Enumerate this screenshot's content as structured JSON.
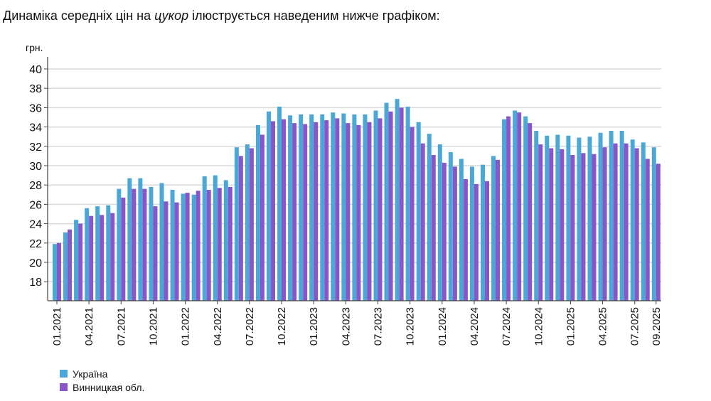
{
  "heading": {
    "before": "Динаміка середніх цін на ",
    "emphasis": "цукор",
    "after": " ілюструється наведеним нижче графіком:"
  },
  "chart_data": {
    "type": "bar",
    "title": "",
    "ylabel": "грн.",
    "xlabel": "",
    "ylim": [
      16,
      41
    ],
    "yticks": [
      18,
      20,
      22,
      24,
      26,
      28,
      30,
      32,
      34,
      36,
      38,
      40
    ],
    "grid": true,
    "legend_position": "bottom-left",
    "xtick_labels": [
      "01.2021",
      "04.2021",
      "07.2021",
      "10.2021",
      "01.2022",
      "04.2022",
      "07.2022",
      "10.2022",
      "01.2023",
      "04.2023",
      "07.2023",
      "10.2023",
      "01.2024",
      "04.2024",
      "07.2024",
      "10.2024",
      "01.2025",
      "04.2025",
      "07.2025",
      "09.2025"
    ],
    "categories": [
      "01.2021",
      "02.2021",
      "03.2021",
      "04.2021",
      "05.2021",
      "06.2021",
      "07.2021",
      "08.2021",
      "09.2021",
      "10.2021",
      "11.2021",
      "12.2021",
      "01.2022",
      "02.2022",
      "03.2022",
      "04.2022",
      "05.2022",
      "06.2022",
      "07.2022",
      "08.2022",
      "09.2022",
      "10.2022",
      "11.2022",
      "12.2022",
      "01.2023",
      "02.2023",
      "03.2023",
      "04.2023",
      "05.2023",
      "06.2023",
      "07.2023",
      "08.2023",
      "09.2023",
      "10.2023",
      "11.2023",
      "12.2023",
      "01.2024",
      "02.2024",
      "03.2024",
      "04.2024",
      "05.2024",
      "06.2024",
      "07.2024",
      "08.2024",
      "09.2024",
      "10.2024",
      "11.2024",
      "12.2024",
      "01.2025",
      "02.2025",
      "03.2025",
      "04.2025",
      "05.2025",
      "06.2025",
      "07.2025",
      "08.2025",
      "09.2025"
    ],
    "series": [
      {
        "name": "Україна",
        "color": "#4aa8d8",
        "values": [
          21.9,
          23.1,
          24.4,
          25.6,
          25.8,
          25.9,
          27.6,
          28.7,
          28.7,
          27.8,
          28.2,
          27.5,
          27.1,
          27.0,
          28.9,
          29.0,
          28.5,
          31.9,
          32.2,
          34.2,
          35.6,
          36.1,
          35.2,
          35.3,
          35.3,
          35.3,
          35.5,
          35.4,
          35.3,
          35.3,
          35.7,
          36.5,
          36.9,
          36.1,
          34.5,
          33.3,
          32.2,
          31.4,
          30.7,
          29.9,
          30.1,
          31.0,
          34.8,
          35.7,
          35.1,
          33.6,
          33.1,
          33.2,
          33.1,
          32.9,
          33.0,
          33.4,
          33.6,
          33.6,
          32.7,
          32.4,
          31.9
        ]
      },
      {
        "name": "Винницкая обл.",
        "color": "#8a55c8",
        "values": [
          22.0,
          23.4,
          24.0,
          24.8,
          24.9,
          25.1,
          26.7,
          27.6,
          27.6,
          25.8,
          26.3,
          26.2,
          27.2,
          27.4,
          27.5,
          27.7,
          27.8,
          31.0,
          31.8,
          33.2,
          34.6,
          34.8,
          34.4,
          34.3,
          34.5,
          34.7,
          34.9,
          34.4,
          34.2,
          34.5,
          34.9,
          35.6,
          36.0,
          34.0,
          32.3,
          31.1,
          30.3,
          29.9,
          28.6,
          28.1,
          28.4,
          30.6,
          35.1,
          35.5,
          34.4,
          32.2,
          31.8,
          31.7,
          31.1,
          31.3,
          31.2,
          31.9,
          32.3,
          32.3,
          31.8,
          30.7,
          30.2
        ]
      }
    ]
  }
}
